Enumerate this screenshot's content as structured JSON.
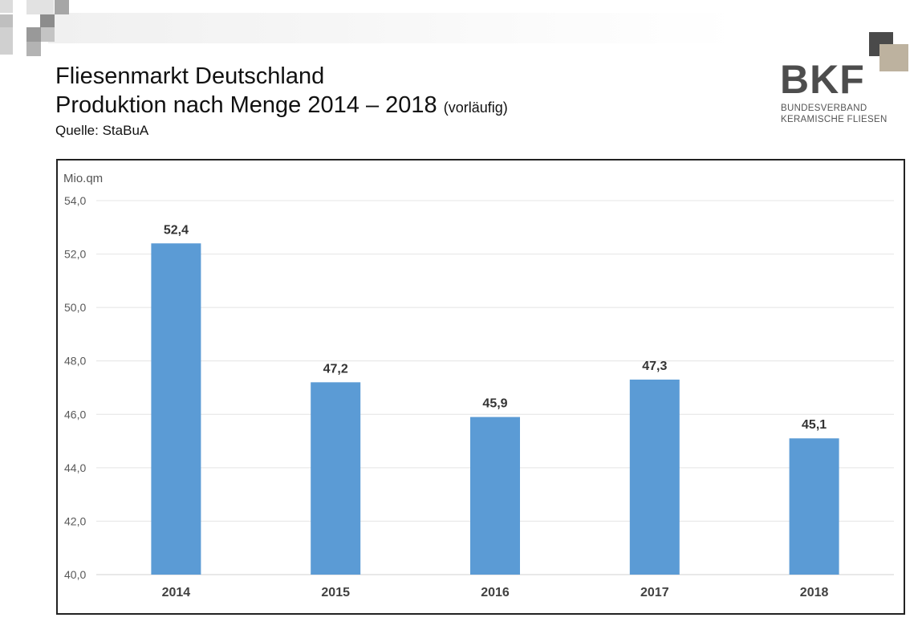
{
  "header": {
    "title_line1": "Fliesenmarkt Deutschland",
    "title_line2_main": "Produktion nach Menge 2014 – 2018",
    "title_line2_note": "(vorläufig)",
    "source": "Quelle: StaBuA"
  },
  "logo": {
    "letters": "BKF",
    "line1": "BUNDESVERBAND",
    "line2": "KERAMISCHE FLIESEN",
    "colors": {
      "dark": "#4a4a4a",
      "beige": "#bdb29f",
      "text": "#4d4d4d"
    }
  },
  "chart_data": {
    "type": "bar",
    "title": "",
    "xlabel": "",
    "ylabel": "Mio.qm",
    "categories": [
      "2014",
      "2015",
      "2016",
      "2017",
      "2018"
    ],
    "values": [
      52.4,
      47.2,
      45.9,
      47.3,
      45.1
    ],
    "value_labels": [
      "52,4",
      "47,2",
      "45,9",
      "47,3",
      "45,1"
    ],
    "ylim": [
      40,
      54
    ],
    "y_ticks": [
      40,
      42,
      44,
      46,
      48,
      50,
      52,
      54
    ],
    "y_tick_labels": [
      "40,0",
      "42,0",
      "44,0",
      "46,0",
      "48,0",
      "50,0",
      "52,0",
      "54,0"
    ],
    "grid": true,
    "legend": "none",
    "bar_color": "#5b9bd5",
    "grid_color": "#e4e4e4"
  }
}
